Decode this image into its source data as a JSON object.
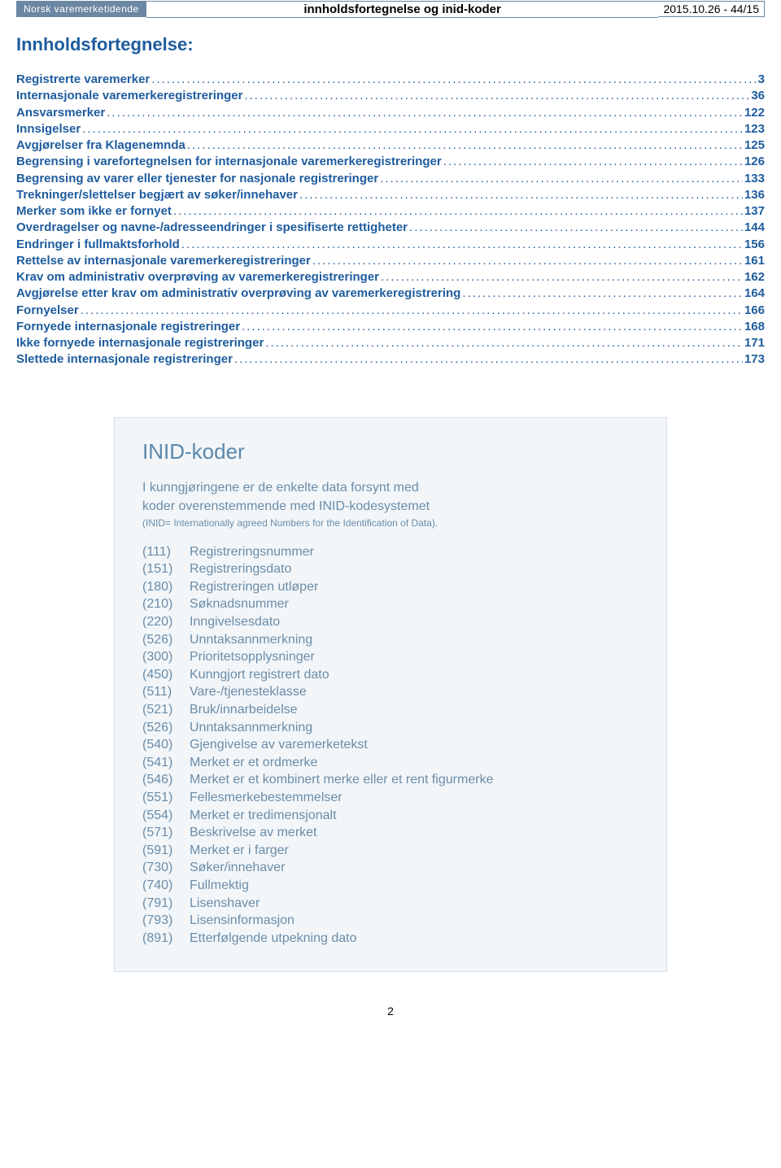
{
  "header": {
    "brand": "Norsk varemerketidende",
    "center": "innholdsfortegnelse og inid-koder",
    "right": "2015.10.26 - 44/15"
  },
  "title": "Innholdsfortegnelse:",
  "toc": [
    {
      "label": "Registrerte varemerker",
      "page": "3"
    },
    {
      "label": "Internasjonale varemerkeregistreringer",
      "page": "36"
    },
    {
      "label": "Ansvarsmerker",
      "page": "122"
    },
    {
      "label": "Innsigelser",
      "page": "123"
    },
    {
      "label": "Avgjørelser fra Klagenemnda",
      "page": "125"
    },
    {
      "label": "Begrensing i varefortegnelsen for internasjonale varemerkeregistreringer",
      "page": "126"
    },
    {
      "label": "Begrensing av varer eller tjenester for nasjonale registreringer",
      "page": "133"
    },
    {
      "label": "Trekninger/slettelser begjært av søker/innehaver",
      "page": "136"
    },
    {
      "label": "Merker som ikke er fornyet",
      "page": "137"
    },
    {
      "label": "Overdragelser og navne-/adresseendringer i spesifiserte rettigheter",
      "page": "144"
    },
    {
      "label": "Endringer i fullmaktsforhold",
      "page": "156"
    },
    {
      "label": "Rettelse av internasjonale varemerkeregistreringer",
      "page": "161"
    },
    {
      "label": "Krav om administrativ overprøving av varemerkeregistreringer",
      "page": "162"
    },
    {
      "label": "Avgjørelse etter krav om administrativ overprøving av varemerkeregistrering",
      "page": "164"
    },
    {
      "label": "Fornyelser",
      "page": "166"
    },
    {
      "label": "Fornyede internasjonale registreringer",
      "page": "168"
    },
    {
      "label": "Ikke fornyede internasjonale registreringer",
      "page": "171"
    },
    {
      "label": "Slettede internasjonale registreringer",
      "page": "173"
    }
  ],
  "inid": {
    "title": "INID-koder",
    "intro_line1": "I kunngjøringene er de enkelte data forsynt med",
    "intro_line2": "koder overenstemmende med INID-kodesystemet",
    "sub": "(INID= Internationally agreed Numbers for the Identification of Data).",
    "items": [
      {
        "code": "(111)",
        "label": "Registreringsnummer"
      },
      {
        "code": "(151)",
        "label": "Registreringsdato"
      },
      {
        "code": "(180)",
        "label": "Registreringen utløper"
      },
      {
        "code": "(210)",
        "label": "Søknadsnummer"
      },
      {
        "code": "(220)",
        "label": "Inngivelsesdato"
      },
      {
        "code": "(526)",
        "label": "Unntaksannmerkning"
      },
      {
        "code": "(300)",
        "label": "Prioritetsopplysninger"
      },
      {
        "code": "(450)",
        "label": "Kunngjort registrert dato"
      },
      {
        "code": "(511)",
        "label": "Vare-/tjenesteklasse"
      },
      {
        "code": "(521)",
        "label": "Bruk/innarbeidelse"
      },
      {
        "code": "(526)",
        "label": "Unntaksannmerkning"
      },
      {
        "code": "(540)",
        "label": "Gjengivelse av varemerketekst"
      },
      {
        "code": "(541)",
        "label": "Merket er et ordmerke"
      },
      {
        "code": "(546)",
        "label": "Merket er et kombinert merke eller et rent figurmerke"
      },
      {
        "code": "(551)",
        "label": "Fellesmerkebestemmelser"
      },
      {
        "code": "(554)",
        "label": "Merket er tredimensjonalt"
      },
      {
        "code": "(571)",
        "label": "Beskrivelse av merket"
      },
      {
        "code": "(591)",
        "label": "Merket er i farger"
      },
      {
        "code": "(730)",
        "label": "Søker/innehaver"
      },
      {
        "code": "(740)",
        "label": "Fullmektig"
      },
      {
        "code": "(791)",
        "label": "Lisenshaver"
      },
      {
        "code": "(793)",
        "label": "Lisensinformasjon"
      },
      {
        "code": "(891)",
        "label": "Etterfølgende utpekning dato"
      }
    ]
  },
  "page_number": "2",
  "colors": {
    "link_blue": "#1e5c9e",
    "box_bg": "#f2f6f9",
    "box_border": "#d5e0ea",
    "box_text": "#6b8ca8",
    "header_bg": "#6b87a3"
  }
}
